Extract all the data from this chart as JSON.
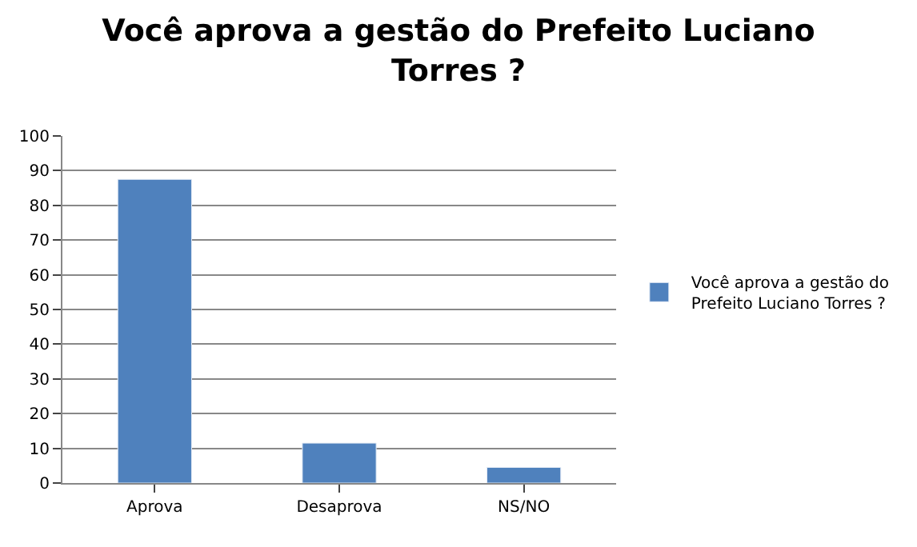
{
  "chart_data": {
    "type": "bar",
    "title": "Você aprova a gestão do Prefeito Luciano Torres ?",
    "categories": [
      "Aprova",
      "Desaprova",
      "NS/NO"
    ],
    "series": [
      {
        "name": "Você aprova a gestão do Prefeito Luciano Torres ?",
        "color": "#4f81bd",
        "values": [
          87.5,
          11.5,
          4.5
        ]
      }
    ],
    "ylim": [
      0,
      100
    ],
    "yticks": [
      0,
      10,
      20,
      30,
      40,
      50,
      60,
      70,
      80,
      90,
      100
    ],
    "grid": "y",
    "legend": "right"
  }
}
